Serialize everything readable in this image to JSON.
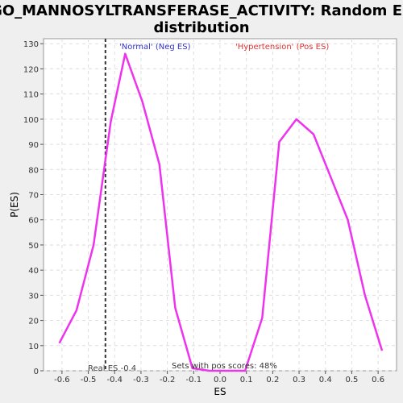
{
  "chart_data": {
    "type": "line",
    "title_line1": "GO_MANNOSYLTRANSFERASE_ACTIVITY: Random ES",
    "title_line2": "distribution",
    "xlabel": "ES",
    "ylabel": "P(ES)",
    "xlim": [
      -0.67,
      0.67
    ],
    "ylim": [
      0,
      132
    ],
    "x_ticks": [
      -0.6,
      -0.5,
      -0.4,
      -0.3,
      -0.2,
      -0.1,
      0.0,
      0.1,
      0.2,
      0.3,
      0.4,
      0.5,
      0.6
    ],
    "x_tick_labels": [
      "-0.6",
      "-0.5",
      "-0.4",
      "-0.3",
      "-0.2",
      "-0.1",
      "0.0",
      "0.1",
      "0.2",
      "0.3",
      "0.4",
      "0.5",
      "0.6"
    ],
    "y_ticks": [
      0,
      10,
      20,
      30,
      40,
      50,
      60,
      70,
      80,
      90,
      100,
      110,
      120,
      130
    ],
    "y_tick_labels": [
      "0",
      "10",
      "20",
      "30",
      "40",
      "50",
      "60",
      "70",
      "80",
      "90",
      "100",
      "110",
      "120",
      "130"
    ],
    "grid": true,
    "series": [
      {
        "color": "#ee33ee",
        "x": [
          -0.61,
          -0.545,
          -0.48,
          -0.415,
          -0.36,
          -0.295,
          -0.23,
          -0.17,
          -0.105,
          -0.04,
          0.03,
          0.095,
          0.16,
          0.225,
          0.29,
          0.355,
          0.42,
          0.485,
          0.55,
          0.615
        ],
        "y": [
          11,
          24,
          50,
          99,
          126,
          107,
          82,
          25,
          1,
          0,
          0,
          0,
          21,
          91,
          100,
          94,
          77,
          60,
          30,
          8
        ]
      }
    ],
    "real_es": -0.435,
    "annotations": {
      "neg_label": "'Normal' (Neg ES)",
      "pos_label": "'Hypertension' (Pos ES)",
      "real_es_label": "Real ES -0.4",
      "pos_scores_label": "Sets with pos scores: 48%"
    },
    "colors": {
      "line": "#ee33ee",
      "neg_label": "#3333cc",
      "pos_label": "#dd3333",
      "real_es_line": "#333333",
      "grid": "#dddddd"
    }
  }
}
